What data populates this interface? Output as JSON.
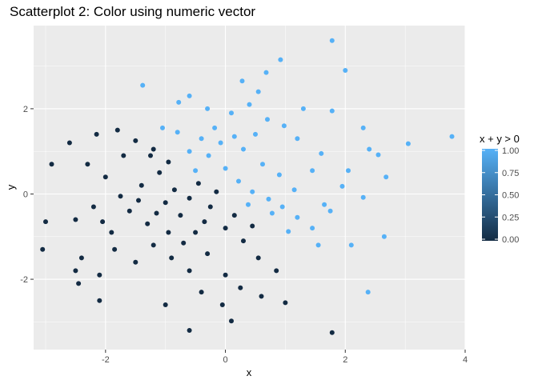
{
  "chart_data": {
    "type": "scatter",
    "title": "Scatterplot 2: Color using numeric vector",
    "xlabel": "x",
    "ylabel": "y",
    "xlim": [
      -3.2,
      4.0
    ],
    "ylim": [
      -3.65,
      3.95
    ],
    "x_ticks": [
      -2,
      0,
      2,
      4
    ],
    "x_tick_labels": [
      "-2",
      "0",
      "2",
      "4"
    ],
    "y_ticks": [
      -2,
      0,
      2
    ],
    "y_tick_labels": [
      "-2",
      "0",
      "2"
    ],
    "grid": true,
    "legend": {
      "title": "x + y > 0",
      "position": "right",
      "ticks": [
        0.0,
        0.25,
        0.5,
        0.75,
        1.0
      ],
      "tick_labels": [
        "0.00",
        "0.25",
        "0.50",
        "0.75",
        "1.00"
      ],
      "low_color": "#132B43",
      "high_color": "#56B1F7"
    },
    "colors": {
      "panel_background": "#EBEBEB",
      "grid_major": "#FFFFFF",
      "true_color": "#56B1F7",
      "false_color": "#132B43"
    },
    "points": [
      [
        1.78,
        3.6
      ],
      [
        2.0,
        2.9
      ],
      [
        0.92,
        3.15
      ],
      [
        0.68,
        2.85
      ],
      [
        0.28,
        2.65
      ],
      [
        -0.6,
        2.3
      ],
      [
        -1.38,
        2.55
      ],
      [
        -0.78,
        2.15
      ],
      [
        3.78,
        1.35
      ],
      [
        3.05,
        1.18
      ],
      [
        2.55,
        0.92
      ],
      [
        2.68,
        0.4
      ],
      [
        2.05,
        0.55
      ],
      [
        2.4,
        1.05
      ],
      [
        2.3,
        1.55
      ],
      [
        1.78,
        1.95
      ],
      [
        1.95,
        0.18
      ],
      [
        2.3,
        -0.08
      ],
      [
        2.65,
        -1.0
      ],
      [
        2.1,
        -1.2
      ],
      [
        2.38,
        -2.3
      ],
      [
        1.65,
        -0.25
      ],
      [
        1.45,
        0.55
      ],
      [
        1.2,
        1.3
      ],
      [
        0.98,
        1.6
      ],
      [
        0.7,
        1.75
      ],
      [
        0.5,
        1.4
      ],
      [
        0.3,
        1.05
      ],
      [
        0.1,
        1.9
      ],
      [
        -0.18,
        1.55
      ],
      [
        -0.4,
        1.3
      ],
      [
        -0.6,
        1.0
      ],
      [
        -0.8,
        1.45
      ],
      [
        -1.05,
        1.55
      ],
      [
        -1.2,
        1.05
      ],
      [
        -0.95,
        0.75
      ],
      [
        -0.5,
        0.55
      ],
      [
        -0.28,
        0.9
      ],
      [
        0.0,
        0.6
      ],
      [
        0.22,
        0.3
      ],
      [
        0.45,
        0.05
      ],
      [
        0.72,
        -0.12
      ],
      [
        0.95,
        -0.3
      ],
      [
        1.2,
        -0.55
      ],
      [
        1.45,
        -0.8
      ],
      [
        1.15,
        0.1
      ],
      [
        0.9,
        0.45
      ],
      [
        0.62,
        0.7
      ],
      [
        1.6,
        0.95
      ],
      [
        0.38,
        -0.25
      ],
      [
        0.78,
        -0.45
      ],
      [
        1.05,
        -0.88
      ],
      [
        1.55,
        -1.2
      ],
      [
        1.75,
        -0.4
      ],
      [
        0.15,
        1.35
      ],
      [
        -0.08,
        1.2
      ],
      [
        0.4,
        2.1
      ],
      [
        -0.3,
        2.0
      ],
      [
        1.3,
        2.0
      ],
      [
        0.55,
        2.4
      ],
      [
        -2.5,
        -0.6
      ],
      [
        -2.2,
        -0.3
      ],
      [
        -1.9,
        -0.9
      ],
      [
        -1.6,
        -0.4
      ],
      [
        -1.3,
        -0.7
      ],
      [
        -1.0,
        -0.2
      ],
      [
        -0.75,
        -0.5
      ],
      [
        -0.5,
        -0.9
      ],
      [
        -0.25,
        -0.3
      ],
      [
        0.0,
        -0.8
      ],
      [
        0.3,
        -1.1
      ],
      [
        0.55,
        -1.5
      ],
      [
        0.85,
        -1.8
      ],
      [
        -2.3,
        0.7
      ],
      [
        -2.0,
        0.4
      ],
      [
        -1.7,
        0.9
      ],
      [
        -1.4,
        0.2
      ],
      [
        -1.1,
        0.5
      ],
      [
        -0.85,
        0.1
      ],
      [
        -0.6,
        -0.1
      ],
      [
        -2.4,
        -1.5
      ],
      [
        -2.1,
        -1.9
      ],
      [
        -1.85,
        -1.3
      ],
      [
        -1.5,
        -1.6
      ],
      [
        -1.2,
        -1.2
      ],
      [
        -0.9,
        -1.5
      ],
      [
        -0.6,
        -1.8
      ],
      [
        -0.3,
        -1.4
      ],
      [
        0.0,
        -1.9
      ],
      [
        0.25,
        -2.2
      ],
      [
        -2.6,
        1.2
      ],
      [
        -2.15,
        1.4
      ],
      [
        -1.8,
        1.5
      ],
      [
        -1.5,
        1.25
      ],
      [
        -1.25,
        0.9
      ],
      [
        -0.95,
        -0.9
      ],
      [
        -0.4,
        -2.3
      ],
      [
        -0.05,
        -2.6
      ],
      [
        0.6,
        -2.4
      ],
      [
        1.0,
        -2.55
      ],
      [
        -3.0,
        -0.65
      ],
      [
        -3.05,
        -1.3
      ],
      [
        -2.9,
        0.7
      ],
      [
        -2.5,
        -1.8
      ],
      [
        -2.45,
        -2.1
      ],
      [
        -2.1,
        -2.5
      ],
      [
        -1.0,
        -2.6
      ],
      [
        -0.6,
        -3.2
      ],
      [
        0.1,
        -2.98
      ],
      [
        1.78,
        -3.25
      ],
      [
        -1.45,
        -0.15
      ],
      [
        -1.15,
        -0.45
      ],
      [
        -0.7,
        -1.15
      ],
      [
        -0.35,
        -0.65
      ],
      [
        0.15,
        -0.5
      ],
      [
        0.45,
        -0.75
      ],
      [
        -1.75,
        -0.05
      ],
      [
        -2.05,
        -0.65
      ],
      [
        -0.45,
        0.25
      ],
      [
        -0.15,
        0.05
      ]
    ]
  }
}
